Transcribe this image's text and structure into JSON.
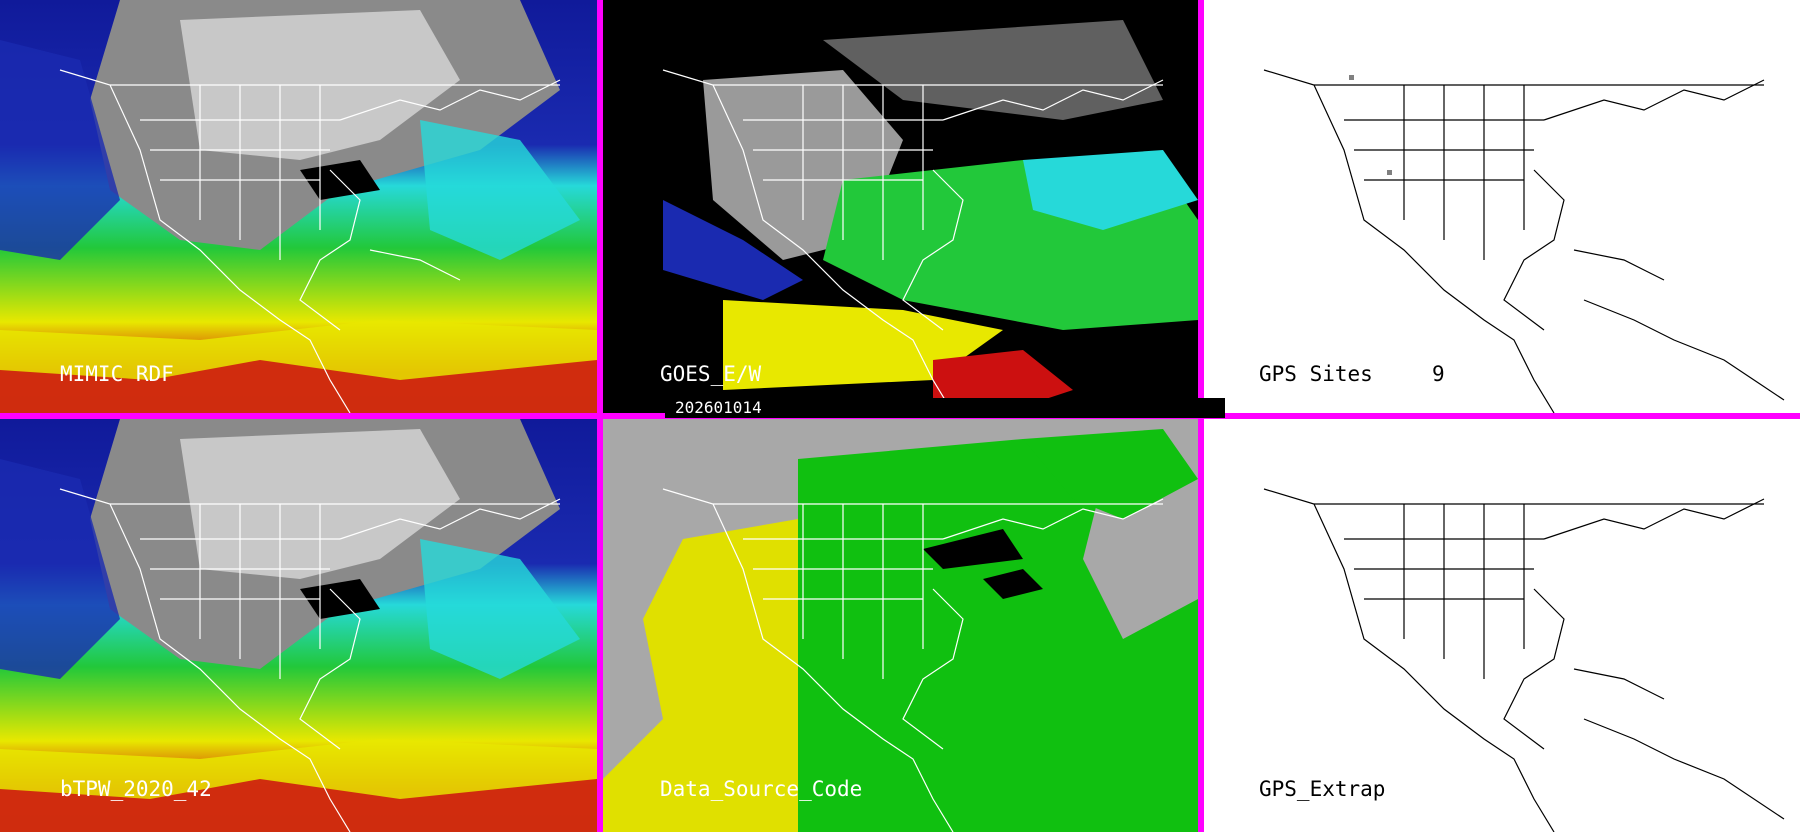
{
  "panels": [
    {
      "id": "mimic",
      "label": "MIMIC RDF",
      "style": "tpw"
    },
    {
      "id": "goes",
      "label": "GOES_E/W",
      "style": "goes"
    },
    {
      "id": "gps-sites",
      "label": "GPS Sites",
      "count": "9",
      "style": "white"
    },
    {
      "id": "btpw",
      "label": "bTPW_2020_42",
      "style": "tpw"
    },
    {
      "id": "dsc",
      "label": "Data_Source_Code",
      "style": "dsc"
    },
    {
      "id": "gps-extrap",
      "label": "GPS_Extrap",
      "style": "white"
    }
  ],
  "date": "202601014",
  "colors": {
    "divider": "#ff00ff",
    "tpw_low": "#1a2ab0",
    "tpw_mid": "#26d9d9",
    "tpw_green": "#22c83a",
    "tpw_yellow": "#e8e800",
    "tpw_red": "#cc1010",
    "dsc_gray": "#a8a8a8",
    "dsc_green": "#10c010",
    "dsc_yellow": "#e0e000",
    "coast": "#ffffff",
    "coast_dark": "#000000"
  }
}
